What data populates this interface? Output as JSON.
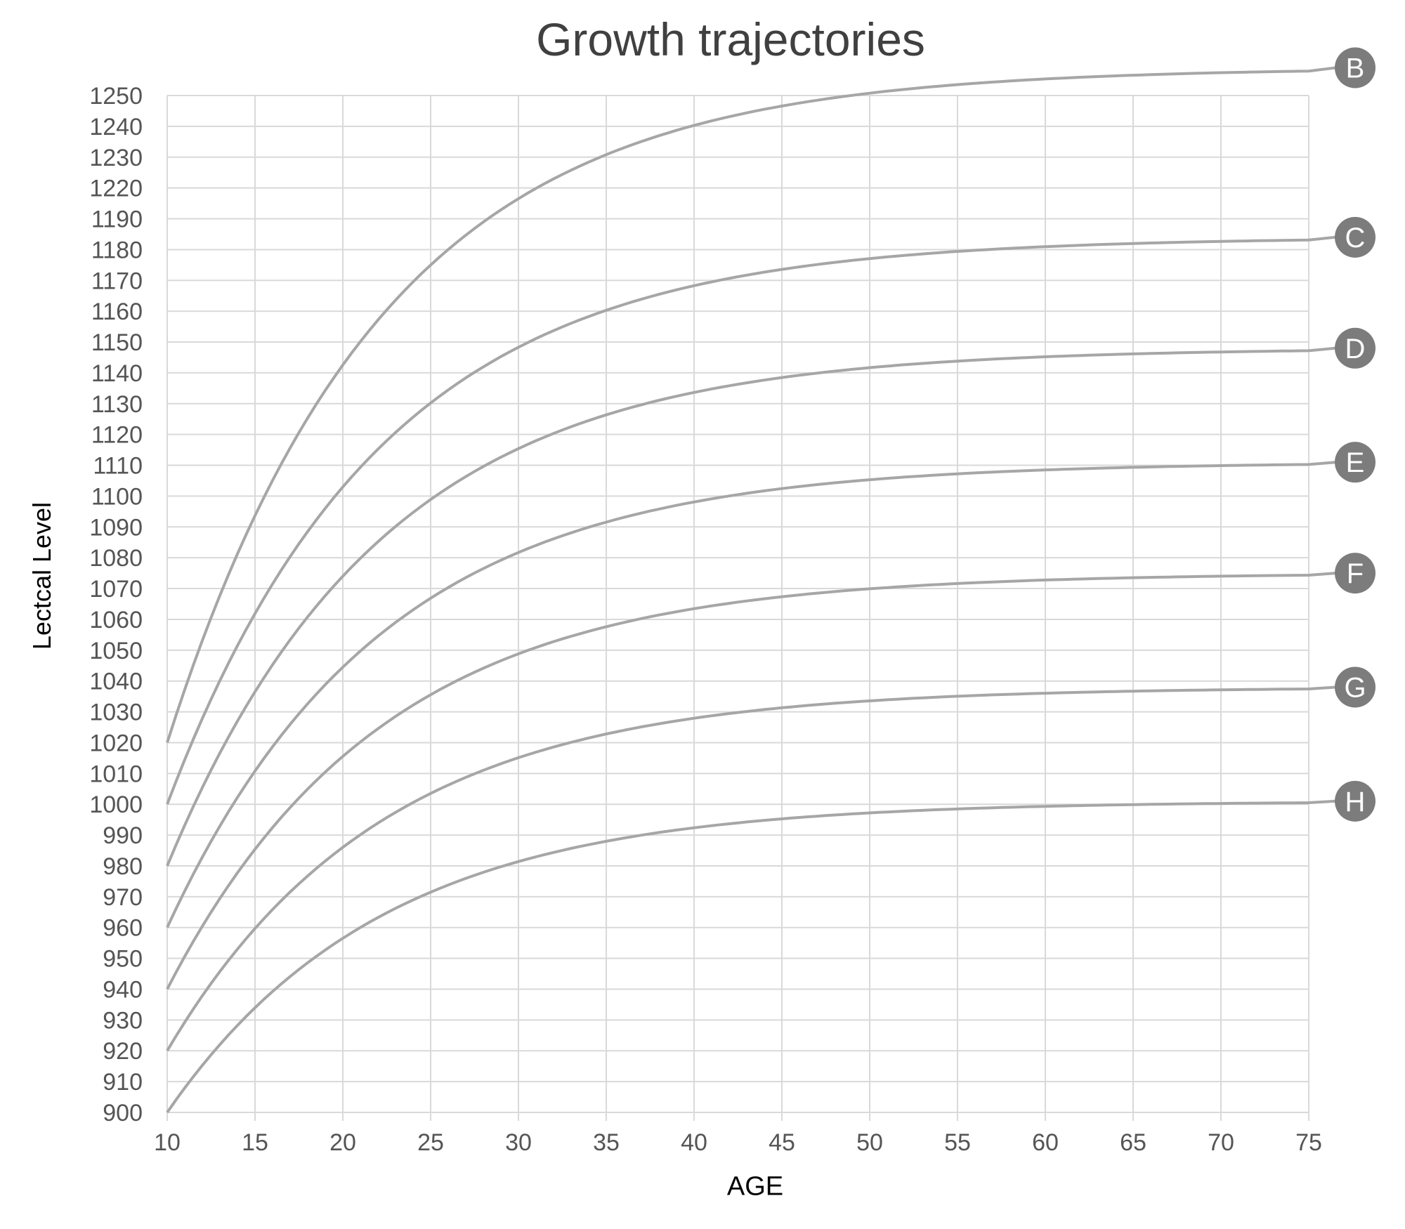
{
  "chart_data": {
    "type": "line",
    "title": "Growth trajectories",
    "xlabel": "AGE",
    "ylabel": "Lectcal Level",
    "x_ticks": [
      10,
      15,
      20,
      25,
      30,
      35,
      40,
      45,
      50,
      55,
      60,
      65,
      70,
      75
    ],
    "xlim": [
      10,
      75
    ],
    "y_tick_labels": [
      "1250",
      "1240",
      "1230",
      "1220",
      "1190",
      "1180",
      "1170",
      "1160",
      "1150",
      "1140",
      "1130",
      "1120",
      "1110",
      "1100",
      "1090",
      "1080",
      "1070",
      "1060",
      "1050",
      "1040",
      "1030",
      "1020",
      "1010",
      "1000",
      "990",
      "980",
      "970",
      "960",
      "950",
      "940",
      "930",
      "920",
      "910",
      "900"
    ],
    "ylim": [
      900,
      1250
    ],
    "grid": true,
    "legend": "end-of-line circle labels",
    "line_color": "#a6a6a6",
    "marker_color": "#7b7c7b",
    "grid_color": "#d9d9d9",
    "series": [
      {
        "name": "B",
        "start": 1020,
        "plateau": 1239,
        "x": [
          10,
          15,
          20,
          25,
          30,
          35,
          40,
          45,
          50,
          55,
          60,
          75
        ],
        "values": [
          1020,
          1080,
          1120,
          1150,
          1170,
          1188,
          1220,
          1228,
          1234,
          1237,
          1239,
          1239
        ]
      },
      {
        "name": "C",
        "start": 1000,
        "plateau": 1184,
        "x": [
          10,
          15,
          20,
          25,
          30,
          35,
          40,
          45,
          50,
          55,
          60,
          75
        ],
        "values": [
          1000,
          1052,
          1090,
          1117,
          1138,
          1153,
          1165,
          1174,
          1179,
          1182,
          1184,
          1184
        ]
      },
      {
        "name": "D",
        "start": 980,
        "plateau": 1148,
        "x": [
          10,
          15,
          20,
          25,
          30,
          35,
          40,
          45,
          50,
          55,
          60,
          75
        ],
        "values": [
          980,
          1026,
          1061,
          1087,
          1106,
          1121,
          1131,
          1139,
          1144,
          1147,
          1148,
          1148
        ]
      },
      {
        "name": "E",
        "start": 960,
        "plateau": 1111,
        "x": [
          10,
          15,
          20,
          25,
          30,
          35,
          40,
          45,
          50,
          55,
          60,
          75
        ],
        "values": [
          960,
          1002,
          1033,
          1056,
          1073,
          1086,
          1095,
          1102,
          1107,
          1110,
          1111,
          1111
        ]
      },
      {
        "name": "F",
        "start": 940,
        "plateau": 1075,
        "x": [
          10,
          15,
          20,
          25,
          30,
          35,
          40,
          45,
          50,
          55,
          60,
          75
        ],
        "values": [
          940,
          980,
          1008,
          1028,
          1043,
          1054,
          1062,
          1068,
          1072,
          1074,
          1075,
          1075
        ]
      },
      {
        "name": "G",
        "start": 920,
        "plateau": 1038,
        "x": [
          10,
          15,
          20,
          25,
          30,
          35,
          40,
          45,
          50,
          55,
          60,
          75
        ],
        "values": [
          920,
          956,
          981,
          998,
          1011,
          1021,
          1027,
          1032,
          1035,
          1037,
          1038,
          1038
        ]
      },
      {
        "name": "H",
        "start": 900,
        "plateau": 1001,
        "x": [
          10,
          15,
          20,
          25,
          30,
          35,
          40,
          45,
          50,
          55,
          60,
          75
        ],
        "values": [
          900,
          935,
          956,
          970,
          980,
          988,
          993,
          997,
          999,
          1000,
          1001,
          1001
        ]
      }
    ]
  }
}
